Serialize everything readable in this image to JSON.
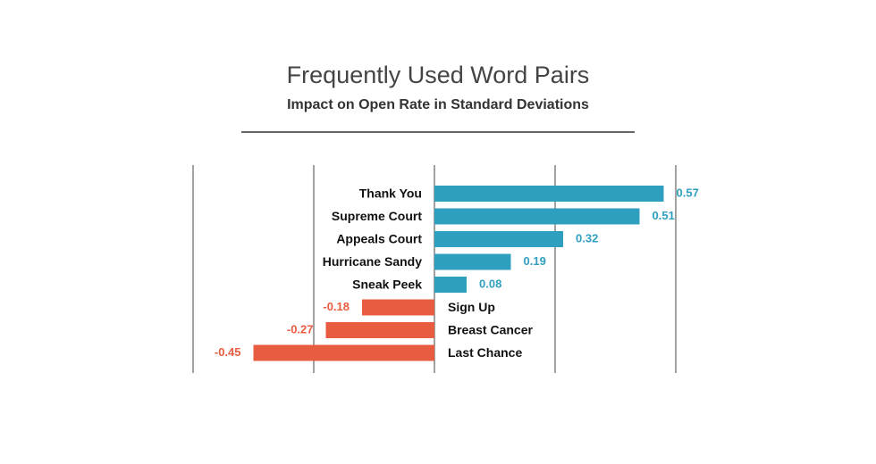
{
  "chart_data": {
    "type": "diverging-bar",
    "title": "Frequently Used Word Pairs",
    "subtitle": "Impact on Open Rate in Standard Deviations",
    "categories": [
      "Thank You",
      "Supreme Court",
      "Appeals Court",
      "Hurricane Sandy",
      "Sneak Peek",
      "Sign Up",
      "Breast Cancer",
      "Last Chance"
    ],
    "values": [
      0.57,
      0.51,
      0.32,
      0.19,
      0.08,
      -0.18,
      -0.27,
      -0.45
    ],
    "positive_color": "#2e9fbf",
    "negative_color": "#e85c41",
    "xlim": [
      -0.6,
      0.6
    ],
    "xticks": [
      -0.6,
      -0.3,
      0,
      0.3,
      0.6
    ],
    "grid": true
  }
}
